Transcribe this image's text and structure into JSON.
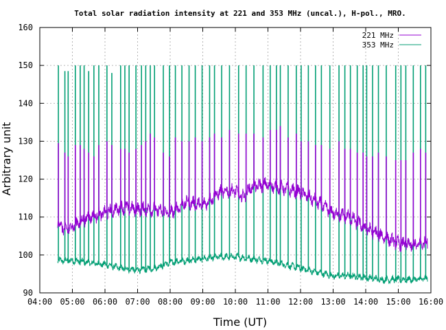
{
  "chart_data": {
    "type": "line",
    "title": "Total solar radiation intensity at 221 and 353 MHz (uncal.), H-pol., MRO.",
    "xlabel": "Time (UT)",
    "ylabel": "Arbitrary unit",
    "xlim": [
      4,
      16
    ],
    "ylim": [
      90,
      160
    ],
    "x_ticks": [
      "04:00",
      "05:00",
      "06:00",
      "07:00",
      "08:00",
      "09:00",
      "10:00",
      "11:00",
      "12:00",
      "13:00",
      "14:00",
      "15:00",
      "16:00"
    ],
    "y_ticks": [
      90,
      100,
      110,
      120,
      130,
      140,
      150,
      160
    ],
    "grid": true,
    "legend_position": "top-right",
    "colors": {
      "s221": "#9400d3",
      "s353": "#009e73",
      "grid": "#a0a0a0",
      "frame": "#000000"
    },
    "series": [
      {
        "name": "221 MHz",
        "baseline_x": [
          4.55,
          4.8,
          5.0,
          5.5,
          6.0,
          6.5,
          7.0,
          7.5,
          8.0,
          8.5,
          9.0,
          9.5,
          10.0,
          10.2,
          10.5,
          11.0,
          11.5,
          12.0,
          12.5,
          13.0,
          13.5,
          14.0,
          14.5,
          15.0,
          15.5,
          15.9
        ],
        "baseline_y": [
          108.5,
          106.5,
          107.5,
          110,
          111,
          112.5,
          112,
          112,
          111,
          114,
          113,
          116.5,
          117,
          115,
          118,
          118.5,
          117.5,
          116.5,
          114,
          111,
          110,
          107,
          105,
          103,
          102.5,
          103.5
        ],
        "spike_x": [
          4.57,
          4.77,
          4.87,
          5.09,
          5.24,
          5.36,
          5.5,
          5.66,
          5.81,
          6.06,
          6.21,
          6.48,
          6.61,
          6.74,
          6.95,
          7.12,
          7.25,
          7.39,
          7.52,
          7.79,
          7.98,
          8.16,
          8.36,
          8.58,
          8.77,
          8.98,
          9.21,
          9.36,
          9.58,
          9.82,
          10.1,
          10.33,
          10.57,
          10.85,
          11.07,
          11.26,
          11.38,
          11.62,
          11.87,
          12.02,
          12.24,
          12.46,
          12.64,
          12.9,
          13.18,
          13.36,
          13.53,
          13.74,
          13.92,
          14.03,
          14.21,
          14.39,
          14.63,
          14.92,
          15.08,
          15.23,
          15.46,
          15.68,
          15.84
        ],
        "spike_y": [
          129.5,
          127,
          126,
          129,
          129,
          128,
          127,
          126,
          129,
          130,
          129,
          128,
          128,
          127,
          128,
          129,
          130,
          132,
          131,
          127,
          126,
          131,
          130,
          130,
          131,
          130,
          131,
          132,
          131,
          133,
          132,
          132,
          132,
          131,
          133,
          133,
          134,
          131,
          132,
          130,
          130,
          129,
          129,
          128,
          130,
          128,
          128,
          127,
          127,
          126,
          126,
          127,
          126,
          125,
          125,
          125,
          127,
          128,
          127
        ]
      },
      {
        "name": "353 MHz",
        "baseline_x": [
          4.55,
          5.0,
          5.5,
          6.0,
          6.5,
          7.0,
          7.5,
          8.0,
          8.5,
          9.0,
          9.5,
          10.0,
          10.5,
          11.0,
          11.5,
          12.0,
          12.5,
          13.0,
          13.5,
          14.0,
          14.5,
          15.0,
          15.5,
          15.9
        ],
        "baseline_y": [
          98.5,
          98.5,
          98,
          97.5,
          96.5,
          96,
          96.5,
          98,
          98.5,
          99,
          99.5,
          99.5,
          99,
          98.5,
          97.5,
          96.5,
          95.5,
          94.5,
          94.5,
          94,
          93.5,
          93.5,
          93.5,
          93.8
        ],
        "spike_x": [
          4.57,
          4.77,
          4.87,
          5.09,
          5.24,
          5.36,
          5.5,
          5.66,
          5.81,
          6.06,
          6.21,
          6.48,
          6.61,
          6.74,
          6.95,
          7.12,
          7.25,
          7.39,
          7.52,
          7.79,
          7.98,
          8.16,
          8.36,
          8.58,
          8.77,
          8.98,
          9.21,
          9.36,
          9.58,
          9.82,
          10.1,
          10.33,
          10.57,
          10.85,
          11.07,
          11.26,
          11.38,
          11.62,
          11.87,
          12.02,
          12.24,
          12.46,
          12.64,
          12.9,
          13.18,
          13.36,
          13.53,
          13.74,
          13.92,
          14.03,
          14.21,
          14.39,
          14.63,
          14.92,
          15.08,
          15.23,
          15.46,
          15.68,
          15.84
        ],
        "spike_y": [
          150,
          148.5,
          148.5,
          150,
          150,
          150,
          148.5,
          150,
          150,
          150,
          148,
          150,
          150,
          150,
          150,
          150,
          150,
          150,
          150,
          150,
          150,
          150,
          150,
          150,
          150,
          150,
          150,
          150,
          150,
          150,
          150,
          150,
          150,
          150,
          150,
          150,
          150,
          150,
          150,
          150,
          150,
          150,
          150,
          150,
          150,
          150,
          150,
          150,
          150,
          150,
          150,
          150,
          150,
          150,
          150,
          150,
          150,
          150,
          150
        ]
      }
    ]
  }
}
